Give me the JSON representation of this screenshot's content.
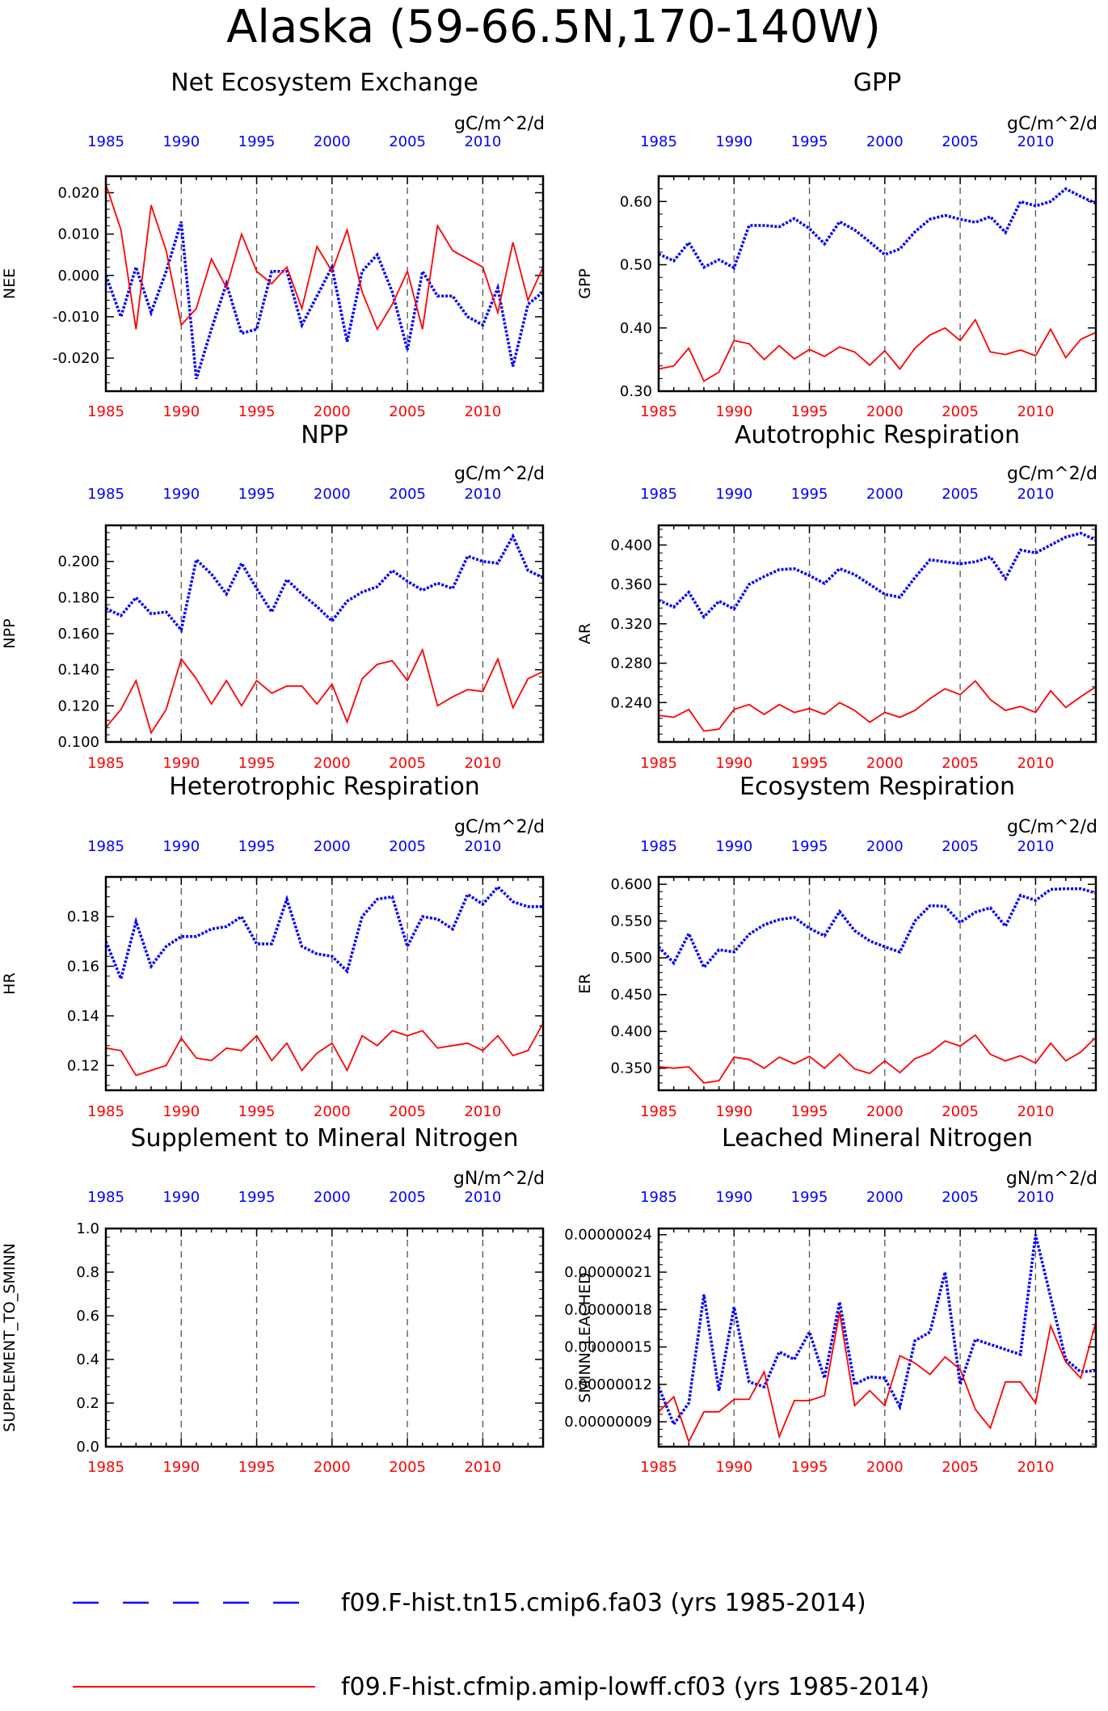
{
  "page_title": "Alaska (59-66.5N,170-140W)",
  "colors": {
    "case1": "#0000ff",
    "case2": "#ff0000",
    "frame": "#000000",
    "vline": "#555555"
  },
  "legend": [
    {
      "name": "f09.F-hist.tn15.cmip6.fa03 (yrs 1985-2014)",
      "color": "#0000ff",
      "style": "dashed"
    },
    {
      "name": "f09.F-hist.cfmip.amip-lowff.cf03 (yrs 1985-2014)",
      "color": "#ff0000",
      "style": "solid"
    }
  ],
  "chart_data": [
    {
      "type": "line",
      "title": "Net Ecosystem Exchange",
      "units": "gC/m^2/d",
      "ylabel": "NEE",
      "top_ticks": [
        "1985",
        "1990",
        "1995",
        "2000",
        "2005",
        "2010"
      ],
      "bottom_ticks": [
        "1985",
        "1990",
        "1995",
        "2000",
        "2005",
        "2010"
      ],
      "y_tick_labels": [
        "0.020",
        "0.010",
        "0.000",
        "-0.010",
        "-0.020"
      ],
      "y_tick_values": [
        0.02,
        0.01,
        0.0,
        -0.01,
        -0.02
      ],
      "ylim": [
        -0.028,
        0.024
      ],
      "x": [
        1985,
        1986,
        1987,
        1988,
        1989,
        1990,
        1991,
        1992,
        1993,
        1994,
        1995,
        1996,
        1997,
        1998,
        1999,
        2000,
        2001,
        2002,
        2003,
        2004,
        2005,
        2006,
        2007,
        2008,
        2009,
        2010,
        2011,
        2012,
        2013,
        2014
      ],
      "series": [
        {
          "values": [
            0.0,
            -0.01,
            0.002,
            -0.009,
            0.001,
            0.013,
            -0.025,
            -0.013,
            -0.002,
            -0.014,
            -0.013,
            0.001,
            0.001,
            -0.012,
            -0.005,
            0.002,
            -0.016,
            0.001,
            0.005,
            -0.004,
            -0.018,
            0.001,
            -0.005,
            -0.005,
            -0.01,
            -0.012,
            -0.003,
            -0.022,
            -0.007,
            -0.004
          ]
        },
        {
          "values": [
            0.022,
            0.011,
            -0.013,
            0.017,
            0.006,
            -0.012,
            -0.008,
            0.004,
            -0.003,
            0.01,
            0.001,
            -0.002,
            0.002,
            -0.008,
            0.007,
            0.001,
            0.011,
            -0.004,
            -0.013,
            -0.007,
            0.001,
            -0.013,
            0.012,
            0.006,
            0.004,
            0.002,
            -0.009,
            0.008,
            -0.006,
            0.002
          ]
        }
      ]
    },
    {
      "type": "line",
      "title": "GPP",
      "units": "gC/m^2/d",
      "ylabel": "GPP",
      "top_ticks": [
        "1985",
        "1990",
        "1995",
        "2000",
        "2005",
        "2010"
      ],
      "bottom_ticks": [
        "1985",
        "1990",
        "1995",
        "2000",
        "2005",
        "2010"
      ],
      "y_tick_labels": [
        "0.60",
        "0.50",
        "0.40",
        "0.30"
      ],
      "y_tick_values": [
        0.6,
        0.5,
        0.4,
        0.3
      ],
      "ylim": [
        0.3,
        0.64
      ],
      "x": [
        1985,
        1986,
        1987,
        1988,
        1989,
        1990,
        1991,
        1992,
        1993,
        1994,
        1995,
        1996,
        1997,
        1998,
        1999,
        2000,
        2001,
        2002,
        2003,
        2004,
        2005,
        2006,
        2007,
        2008,
        2009,
        2010,
        2011,
        2012,
        2013,
        2014
      ],
      "series": [
        {
          "values": [
            0.517,
            0.506,
            0.535,
            0.496,
            0.508,
            0.495,
            0.562,
            0.562,
            0.56,
            0.573,
            0.557,
            0.533,
            0.568,
            0.555,
            0.536,
            0.516,
            0.525,
            0.552,
            0.572,
            0.578,
            0.572,
            0.567,
            0.576,
            0.551,
            0.6,
            0.593,
            0.6,
            0.62,
            0.608,
            0.597
          ]
        },
        {
          "values": [
            0.335,
            0.34,
            0.368,
            0.316,
            0.33,
            0.38,
            0.375,
            0.35,
            0.372,
            0.351,
            0.366,
            0.355,
            0.37,
            0.362,
            0.341,
            0.364,
            0.335,
            0.368,
            0.389,
            0.4,
            0.38,
            0.413,
            0.362,
            0.358,
            0.365,
            0.356,
            0.398,
            0.353,
            0.382,
            0.393
          ]
        }
      ]
    },
    {
      "type": "line",
      "title": "NPP",
      "units": "gC/m^2/d",
      "ylabel": "NPP",
      "top_ticks": [
        "1985",
        "1990",
        "1995",
        "2000",
        "2005",
        "2010"
      ],
      "bottom_ticks": [
        "1985",
        "1990",
        "1995",
        "2000",
        "2005",
        "2010"
      ],
      "y_tick_labels": [
        "0.200",
        "0.180",
        "0.160",
        "0.140",
        "0.120",
        "0.100"
      ],
      "y_tick_values": [
        0.2,
        0.18,
        0.16,
        0.14,
        0.12,
        0.1
      ],
      "ylim": [
        0.1,
        0.22
      ],
      "x": [
        1985,
        1986,
        1987,
        1988,
        1989,
        1990,
        1991,
        1992,
        1993,
        1994,
        1995,
        1996,
        1997,
        1998,
        1999,
        2000,
        2001,
        2002,
        2003,
        2004,
        2005,
        2006,
        2007,
        2008,
        2009,
        2010,
        2011,
        2012,
        2013,
        2014
      ],
      "series": [
        {
          "values": [
            0.174,
            0.17,
            0.18,
            0.171,
            0.172,
            0.162,
            0.201,
            0.193,
            0.182,
            0.199,
            0.185,
            0.172,
            0.19,
            0.182,
            0.175,
            0.167,
            0.178,
            0.183,
            0.186,
            0.195,
            0.189,
            0.184,
            0.188,
            0.185,
            0.203,
            0.2,
            0.199,
            0.214,
            0.195,
            0.191
          ]
        },
        {
          "values": [
            0.108,
            0.118,
            0.134,
            0.105,
            0.118,
            0.146,
            0.135,
            0.121,
            0.134,
            0.12,
            0.134,
            0.127,
            0.131,
            0.131,
            0.121,
            0.132,
            0.111,
            0.135,
            0.143,
            0.145,
            0.134,
            0.151,
            0.12,
            0.125,
            0.129,
            0.128,
            0.146,
            0.119,
            0.135,
            0.139
          ]
        }
      ]
    },
    {
      "type": "line",
      "title": "Autotrophic Respiration",
      "units": "gC/m^2/d",
      "ylabel": "AR",
      "top_ticks": [
        "1985",
        "1990",
        "1995",
        "2000",
        "2005",
        "2010"
      ],
      "bottom_ticks": [
        "1985",
        "1990",
        "1995",
        "2000",
        "2005",
        "2010"
      ],
      "y_tick_labels": [
        "0.400",
        "0.360",
        "0.320",
        "0.280",
        "0.240"
      ],
      "y_tick_values": [
        0.4,
        0.36,
        0.32,
        0.28,
        0.24
      ],
      "ylim": [
        0.2,
        0.42
      ],
      "x": [
        1985,
        1986,
        1987,
        1988,
        1989,
        1990,
        1991,
        1992,
        1993,
        1994,
        1995,
        1996,
        1997,
        1998,
        1999,
        2000,
        2001,
        2002,
        2003,
        2004,
        2005,
        2006,
        2007,
        2008,
        2009,
        2010,
        2011,
        2012,
        2013,
        2014
      ],
      "series": [
        {
          "values": [
            0.344,
            0.337,
            0.352,
            0.327,
            0.343,
            0.335,
            0.36,
            0.368,
            0.375,
            0.376,
            0.369,
            0.361,
            0.376,
            0.37,
            0.36,
            0.35,
            0.347,
            0.367,
            0.385,
            0.383,
            0.381,
            0.383,
            0.388,
            0.366,
            0.395,
            0.392,
            0.4,
            0.408,
            0.412,
            0.405
          ]
        },
        {
          "values": [
            0.227,
            0.225,
            0.233,
            0.211,
            0.213,
            0.233,
            0.238,
            0.228,
            0.238,
            0.23,
            0.234,
            0.228,
            0.24,
            0.232,
            0.22,
            0.23,
            0.225,
            0.232,
            0.244,
            0.254,
            0.248,
            0.262,
            0.243,
            0.232,
            0.236,
            0.23,
            0.252,
            0.235,
            0.246,
            0.256
          ]
        }
      ]
    },
    {
      "type": "line",
      "title": "Heterotrophic Respiration",
      "units": "gC/m^2/d",
      "ylabel": "HR",
      "top_ticks": [
        "1985",
        "1990",
        "1995",
        "2000",
        "2005",
        "2010"
      ],
      "bottom_ticks": [
        "1985",
        "1990",
        "1995",
        "2000",
        "2005",
        "2010"
      ],
      "y_tick_labels": [
        "0.18",
        "0.16",
        "0.14",
        "0.12"
      ],
      "y_tick_values": [
        0.18,
        0.16,
        0.14,
        0.12
      ],
      "ylim": [
        0.11,
        0.196
      ],
      "x": [
        1985,
        1986,
        1987,
        1988,
        1989,
        1990,
        1991,
        1992,
        1993,
        1994,
        1995,
        1996,
        1997,
        1998,
        1999,
        2000,
        2001,
        2002,
        2003,
        2004,
        2005,
        2006,
        2007,
        2008,
        2009,
        2010,
        2011,
        2012,
        2013,
        2014
      ],
      "series": [
        {
          "values": [
            0.17,
            0.155,
            0.178,
            0.16,
            0.168,
            0.172,
            0.172,
            0.175,
            0.176,
            0.18,
            0.169,
            0.169,
            0.187,
            0.168,
            0.165,
            0.164,
            0.158,
            0.18,
            0.187,
            0.188,
            0.168,
            0.18,
            0.179,
            0.175,
            0.189,
            0.185,
            0.192,
            0.186,
            0.184,
            0.184
          ]
        },
        {
          "values": [
            0.127,
            0.126,
            0.116,
            0.118,
            0.12,
            0.131,
            0.123,
            0.122,
            0.127,
            0.126,
            0.132,
            0.122,
            0.129,
            0.118,
            0.125,
            0.129,
            0.118,
            0.132,
            0.128,
            0.134,
            0.132,
            0.134,
            0.127,
            0.128,
            0.129,
            0.126,
            0.132,
            0.124,
            0.126,
            0.137
          ]
        }
      ]
    },
    {
      "type": "line",
      "title": "Ecosystem Respiration",
      "units": "gC/m^2/d",
      "ylabel": "ER",
      "top_ticks": [
        "1985",
        "1990",
        "1995",
        "2000",
        "2005",
        "2010"
      ],
      "bottom_ticks": [
        "1985",
        "1990",
        "1995",
        "2000",
        "2005",
        "2010"
      ],
      "y_tick_labels": [
        "0.600",
        "0.550",
        "0.500",
        "0.450",
        "0.400",
        "0.350"
      ],
      "y_tick_values": [
        0.6,
        0.55,
        0.5,
        0.45,
        0.4,
        0.35
      ],
      "ylim": [
        0.32,
        0.61
      ],
      "x": [
        1985,
        1986,
        1987,
        1988,
        1989,
        1990,
        1991,
        1992,
        1993,
        1994,
        1995,
        1996,
        1997,
        1998,
        1999,
        2000,
        2001,
        2002,
        2003,
        2004,
        2005,
        2006,
        2007,
        2008,
        2009,
        2010,
        2011,
        2012,
        2013,
        2014
      ],
      "series": [
        {
          "values": [
            0.515,
            0.493,
            0.533,
            0.487,
            0.511,
            0.508,
            0.532,
            0.545,
            0.552,
            0.555,
            0.54,
            0.53,
            0.563,
            0.537,
            0.523,
            0.515,
            0.508,
            0.55,
            0.571,
            0.57,
            0.548,
            0.562,
            0.568,
            0.543,
            0.585,
            0.578,
            0.593,
            0.594,
            0.594,
            0.588
          ]
        },
        {
          "values": [
            0.352,
            0.35,
            0.352,
            0.33,
            0.333,
            0.365,
            0.362,
            0.35,
            0.365,
            0.356,
            0.366,
            0.35,
            0.369,
            0.349,
            0.343,
            0.36,
            0.344,
            0.363,
            0.371,
            0.387,
            0.38,
            0.395,
            0.369,
            0.36,
            0.367,
            0.357,
            0.384,
            0.36,
            0.372,
            0.392
          ]
        }
      ]
    },
    {
      "type": "line",
      "title": "Supplement to Mineral Nitrogen",
      "units": "gN/m^2/d",
      "ylabel": "SUPPLEMENT_TO_SMINN",
      "top_ticks": [
        "1985",
        "1990",
        "1995",
        "2000",
        "2005",
        "2010"
      ],
      "bottom_ticks": [
        "1985",
        "1990",
        "1995",
        "2000",
        "2005",
        "2010"
      ],
      "y_tick_labels": [
        "1.0",
        "0.8",
        "0.6",
        "0.4",
        "0.2",
        "0.0"
      ],
      "y_tick_values": [
        1.0,
        0.8,
        0.6,
        0.4,
        0.2,
        0.0
      ],
      "ylim": [
        0.0,
        1.0
      ],
      "x": [
        1985,
        1986,
        1987,
        1988,
        1989,
        1990,
        1991,
        1992,
        1993,
        1994,
        1995,
        1996,
        1997,
        1998,
        1999,
        2000,
        2001,
        2002,
        2003,
        2004,
        2005,
        2006,
        2007,
        2008,
        2009,
        2010,
        2011,
        2012,
        2013,
        2014
      ],
      "series": []
    },
    {
      "type": "line",
      "title": "Leached Mineral Nitrogen",
      "units": "gN/m^2/d",
      "ylabel": "SMINN_LEACHED",
      "top_ticks": [
        "1985",
        "1990",
        "1995",
        "2000",
        "2005",
        "2010"
      ],
      "bottom_ticks": [
        "1985",
        "1990",
        "1995",
        "2000",
        "2005",
        "2010"
      ],
      "y_tick_labels": [
        "0.00000024",
        "0.00000021",
        "0.00000018",
        "0.00000015",
        "0.00000012",
        "0.00000009"
      ],
      "y_tick_values": [
        2.4e-07,
        2.1e-07,
        1.8e-07,
        1.5e-07,
        1.2e-07,
        9e-08
      ],
      "ylim": [
        7e-08,
        2.45e-07
      ],
      "x": [
        1985,
        1986,
        1987,
        1988,
        1989,
        1990,
        1991,
        1992,
        1993,
        1994,
        1995,
        1996,
        1997,
        1998,
        1999,
        2000,
        2001,
        2002,
        2003,
        2004,
        2005,
        2006,
        2007,
        2008,
        2009,
        2010,
        2011,
        2012,
        2013,
        2014
      ],
      "series": [
        {
          "values": [
            1.18e-07,
            8.8e-08,
            1.05e-07,
            1.92e-07,
            1.15e-07,
            1.82e-07,
            1.22e-07,
            1.18e-07,
            1.46e-07,
            1.4e-07,
            1.62e-07,
            1.25e-07,
            1.86e-07,
            1.2e-07,
            1.26e-07,
            1.25e-07,
            1.02e-07,
            1.55e-07,
            1.62e-07,
            2.1e-07,
            1.2e-07,
            1.56e-07,
            1.52e-07,
            1.48e-07,
            1.44e-07,
            2.4e-07,
            1.9e-07,
            1.4e-07,
            1.3e-07,
            1.31e-07
          ]
        },
        {
          "values": [
            9.8e-08,
            1.1e-07,
            7.4e-08,
            9.8e-08,
            9.8e-08,
            1.08e-07,
            1.08e-07,
            1.3e-07,
            7.8e-08,
            1.07e-07,
            1.07e-07,
            1.11e-07,
            1.78e-07,
            1.03e-07,
            1.15e-07,
            1.03e-07,
            1.43e-07,
            1.37e-07,
            1.28e-07,
            1.42e-07,
            1.32e-07,
            1e-07,
            8.5e-08,
            1.22e-07,
            1.22e-07,
            1.05e-07,
            1.67e-07,
            1.38e-07,
            1.25e-07,
            1.7e-07
          ]
        }
      ]
    }
  ]
}
